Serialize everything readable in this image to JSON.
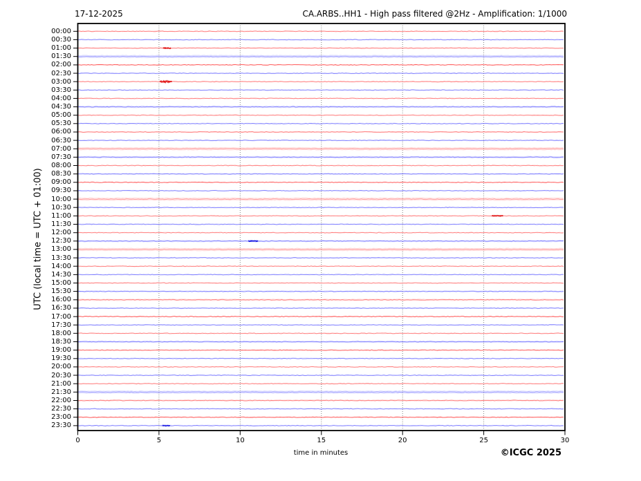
{
  "header": {
    "date": "17-12-2025",
    "title": "CA.ARBS..HH1 - High pass filtered @2Hz - Amplification: 1/1000"
  },
  "axes": {
    "y_label": "UTC (local time = UTC + 01:00)",
    "x_label": "time in minutes",
    "x_tick_labels": [
      "0",
      "5",
      "10",
      "15",
      "20",
      "25",
      "30"
    ]
  },
  "footer": {
    "copyright": "©ICGC 2025"
  },
  "colors": {
    "red_core": "#ff3b3b",
    "red_halo": "#ff9a9a",
    "red_event": "#dd0000",
    "blue_core": "#4343ff",
    "blue_halo": "#9a9aff",
    "blue_event": "#0000dd",
    "grid": "#777777",
    "frame": "#000000",
    "background": "#ffffff"
  },
  "chart_data": {
    "type": "line",
    "subtype": "helicorder-seismogram",
    "title": "CA.ARBS..HH1 - High pass filtered @2Hz - Amplification: 1/1000",
    "date": "17-12-2025",
    "x_range_minutes": [
      0,
      30
    ],
    "x_ticks": [
      0,
      5,
      10,
      15,
      20,
      25,
      30
    ],
    "minutes_per_row": 30,
    "grid_minutes": [
      5,
      10,
      15,
      20,
      25
    ],
    "rows": [
      {
        "t": "00:00",
        "c": "red",
        "fuzz": 1.6
      },
      {
        "t": "00:30",
        "c": "blue",
        "fuzz": 1.6
      },
      {
        "t": "01:00",
        "c": "red",
        "fuzz": 1.8
      },
      {
        "t": "01:30",
        "c": "blue",
        "fuzz": 4.0
      },
      {
        "t": "02:00",
        "c": "red",
        "fuzz": 1.4
      },
      {
        "t": "02:30",
        "c": "blue",
        "fuzz": 1.6
      },
      {
        "t": "03:00",
        "c": "red",
        "fuzz": 1.5
      },
      {
        "t": "03:30",
        "c": "blue",
        "fuzz": 1.6
      },
      {
        "t": "04:00",
        "c": "red",
        "fuzz": 1.5
      },
      {
        "t": "04:30",
        "c": "blue",
        "fuzz": 2.8
      },
      {
        "t": "05:00",
        "c": "red",
        "fuzz": 1.5
      },
      {
        "t": "05:30",
        "c": "blue",
        "fuzz": 1.6
      },
      {
        "t": "06:00",
        "c": "red",
        "fuzz": 2.0
      },
      {
        "t": "06:30",
        "c": "blue",
        "fuzz": 1.7
      },
      {
        "t": "07:00",
        "c": "red",
        "fuzz": 4.0
      },
      {
        "t": "07:30",
        "c": "blue",
        "fuzz": 2.8
      },
      {
        "t": "08:00",
        "c": "red",
        "fuzz": 1.5
      },
      {
        "t": "08:30",
        "c": "blue",
        "fuzz": 2.0
      },
      {
        "t": "09:00",
        "c": "red",
        "fuzz": 1.2
      },
      {
        "t": "09:30",
        "c": "blue",
        "fuzz": 1.6
      },
      {
        "t": "10:00",
        "c": "red",
        "fuzz": 4.0
      },
      {
        "t": "10:30",
        "c": "blue",
        "fuzz": 1.7
      },
      {
        "t": "11:00",
        "c": "red",
        "fuzz": 1.5
      },
      {
        "t": "11:30",
        "c": "blue",
        "fuzz": 1.6
      },
      {
        "t": "12:00",
        "c": "red",
        "fuzz": 1.5
      },
      {
        "t": "12:30",
        "c": "blue",
        "fuzz": 2.6
      },
      {
        "t": "13:00",
        "c": "red",
        "fuzz": 4.0
      },
      {
        "t": "13:30",
        "c": "blue",
        "fuzz": 1.7
      },
      {
        "t": "14:00",
        "c": "red",
        "fuzz": 1.5
      },
      {
        "t": "14:30",
        "c": "blue",
        "fuzz": 1.6
      },
      {
        "t": "15:00",
        "c": "red",
        "fuzz": 1.5
      },
      {
        "t": "15:30",
        "c": "blue",
        "fuzz": 2.0
      },
      {
        "t": "16:00",
        "c": "red",
        "fuzz": 2.6
      },
      {
        "t": "16:30",
        "c": "blue",
        "fuzz": 1.7
      },
      {
        "t": "17:00",
        "c": "red",
        "fuzz": 1.4
      },
      {
        "t": "17:30",
        "c": "blue",
        "fuzz": 1.6
      },
      {
        "t": "18:00",
        "c": "red",
        "fuzz": 1.5
      },
      {
        "t": "18:30",
        "c": "blue",
        "fuzz": 2.6
      },
      {
        "t": "19:00",
        "c": "red",
        "fuzz": 1.2
      },
      {
        "t": "19:30",
        "c": "blue",
        "fuzz": 1.6
      },
      {
        "t": "20:00",
        "c": "red",
        "fuzz": 1.5
      },
      {
        "t": "20:30",
        "c": "blue",
        "fuzz": 1.6
      },
      {
        "t": "21:00",
        "c": "red",
        "fuzz": 1.5
      },
      {
        "t": "21:30",
        "c": "blue",
        "fuzz": 4.0
      },
      {
        "t": "22:00",
        "c": "red",
        "fuzz": 2.2
      },
      {
        "t": "22:30",
        "c": "blue",
        "fuzz": 1.6
      },
      {
        "t": "23:00",
        "c": "red",
        "fuzz": 1.4
      },
      {
        "t": "23:30",
        "c": "blue",
        "fuzz": 1.6
      }
    ],
    "events": [
      {
        "row": "01:00",
        "start_min": 5.25,
        "duration_min": 0.5,
        "amp": 1.0
      },
      {
        "row": "03:00",
        "start_min": 5.05,
        "duration_min": 0.75,
        "amp": 2.0
      },
      {
        "row": "11:00",
        "start_min": 25.5,
        "duration_min": 0.7,
        "amp": 0.9
      },
      {
        "row": "12:30",
        "start_min": 10.5,
        "duration_min": 0.6,
        "amp": 0.9
      },
      {
        "row": "23:30",
        "start_min": 5.2,
        "duration_min": 0.5,
        "amp": 0.8
      }
    ]
  }
}
